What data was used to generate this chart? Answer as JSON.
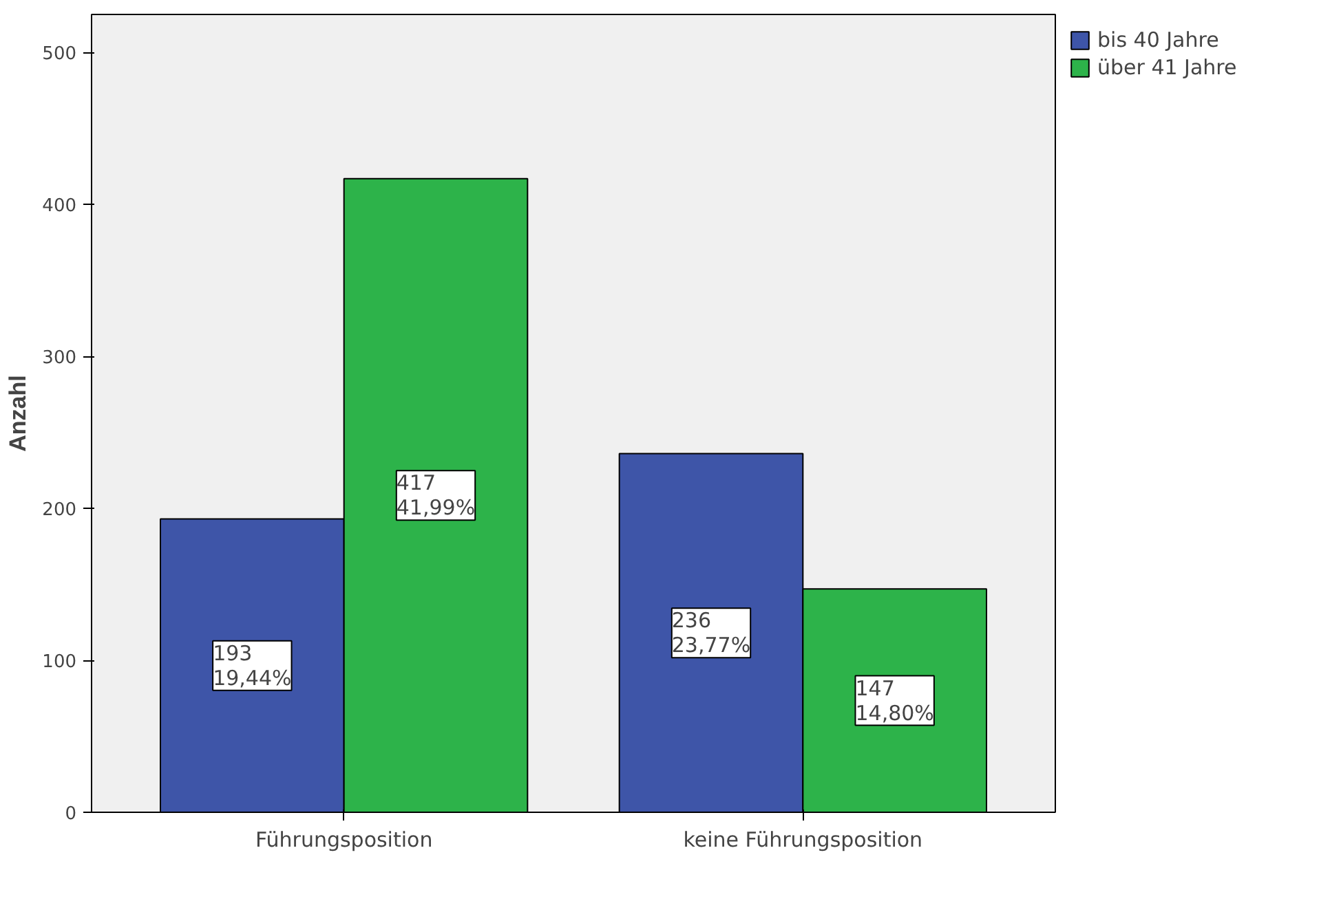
{
  "chart_data": {
    "type": "bar",
    "ylabel": "Anzahl",
    "categories": [
      "Führungsposition",
      "keine Führungsposition"
    ],
    "series": [
      {
        "name": "bis 40 Jahre",
        "color": "#3e55a8",
        "values": [
          193,
          236
        ],
        "value_labels": [
          "193\n19,44%",
          "236\n23,77%"
        ]
      },
      {
        "name": "über 41 Jahre",
        "color": "#2db34a",
        "values": [
          417,
          147
        ],
        "value_labels": [
          "417\n41,99%",
          "147\n14,80%"
        ]
      }
    ],
    "ylim": [
      0,
      525
    ],
    "yticks": [
      0,
      100,
      200,
      300,
      400,
      500
    ],
    "grid": false,
    "legend": "top right"
  }
}
